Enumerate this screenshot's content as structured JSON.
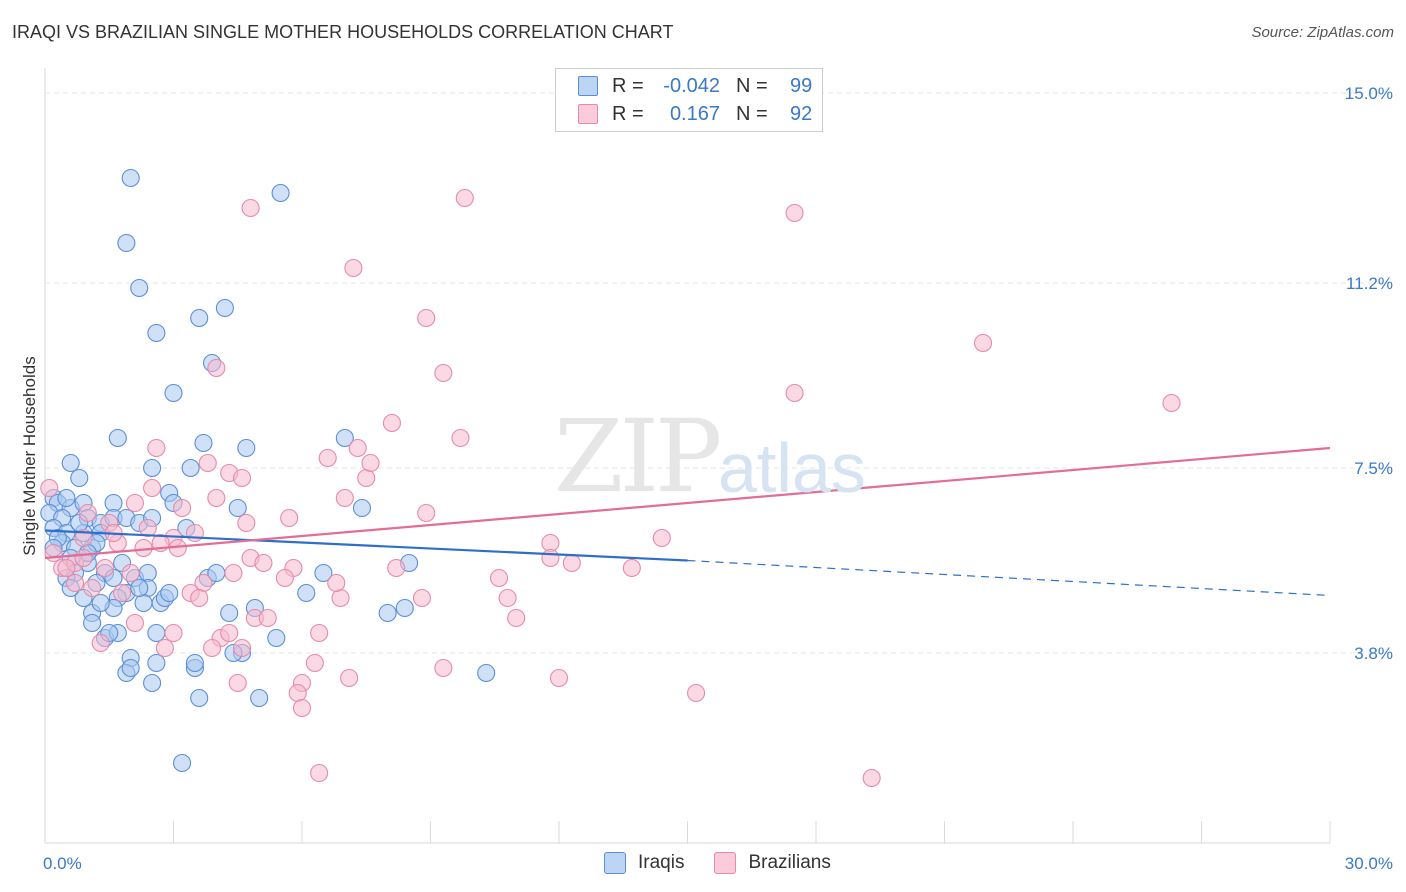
{
  "title": "IRAQI VS BRAZILIAN SINGLE MOTHER HOUSEHOLDS CORRELATION CHART",
  "source": "Source: ZipAtlas.com",
  "watermark": {
    "main": "ZIP",
    "sub": "atlas"
  },
  "legend": {
    "rows": [
      {
        "r_label": "R =",
        "r_value": "-0.042",
        "n_label": "N =",
        "n_value": "99"
      },
      {
        "r_label": "R =",
        "r_value": "0.167",
        "n_label": "N =",
        "n_value": "92"
      }
    ]
  },
  "bottom_legend": [
    "Iraqis",
    "Brazilians"
  ],
  "colors": {
    "iraqis_fill": "#a9c8f0",
    "iraqis_stroke": "#5a8fd6",
    "iraqis_line": "#2e6fcb",
    "brazilians_fill": "#f7b9ce",
    "brazilians_stroke": "#e68aa9",
    "brazilians_line": "#e26d98",
    "tick_label": "#3a78c9"
  },
  "chart_data": {
    "type": "scatter",
    "title": "IRAQI VS BRAZILIAN SINGLE MOTHER HOUSEHOLDS CORRELATION CHART",
    "xlabel": "",
    "ylabel": "Single Mother Households",
    "xlim": [
      0,
      30
    ],
    "ylim": [
      0,
      15.5
    ],
    "x_tick_labels": [
      {
        "value": 0,
        "label": "0.0%"
      },
      {
        "value": 30,
        "label": "30.0%"
      }
    ],
    "y_tick_labels": [
      {
        "value": 3.8,
        "label": "3.8%"
      },
      {
        "value": 7.5,
        "label": "7.5%"
      },
      {
        "value": 11.2,
        "label": "11.2%"
      },
      {
        "value": 15.0,
        "label": "15.0%"
      }
    ],
    "series": [
      {
        "name": "Iraqis",
        "R": -0.042,
        "N": 99,
        "trend": {
          "x": [
            0,
            15
          ],
          "y": [
            6.25,
            5.65
          ],
          "dashed_to": [
            30,
            4.95
          ]
        },
        "points": [
          [
            2.0,
            13.3
          ],
          [
            5.5,
            13.0
          ],
          [
            1.9,
            12.0
          ],
          [
            2.2,
            11.1
          ],
          [
            4.2,
            10.7
          ],
          [
            3.6,
            10.5
          ],
          [
            2.6,
            10.2
          ],
          [
            3.9,
            9.6
          ],
          [
            3.0,
            9.0
          ],
          [
            1.7,
            8.1
          ],
          [
            3.7,
            8.0
          ],
          [
            4.7,
            7.9
          ],
          [
            7.0,
            8.1
          ],
          [
            0.6,
            7.6
          ],
          [
            0.8,
            7.3
          ],
          [
            2.5,
            7.5
          ],
          [
            3.4,
            7.5
          ],
          [
            2.9,
            7.0
          ],
          [
            0.2,
            6.9
          ],
          [
            0.3,
            6.8
          ],
          [
            0.6,
            6.7
          ],
          [
            0.9,
            6.8
          ],
          [
            1.6,
            6.8
          ],
          [
            3.0,
            6.8
          ],
          [
            4.5,
            6.7
          ],
          [
            7.4,
            6.7
          ],
          [
            0.1,
            6.6
          ],
          [
            0.4,
            6.5
          ],
          [
            1.0,
            6.5
          ],
          [
            1.3,
            6.4
          ],
          [
            1.6,
            6.5
          ],
          [
            1.9,
            6.5
          ],
          [
            2.2,
            6.4
          ],
          [
            2.5,
            6.5
          ],
          [
            0.2,
            6.3
          ],
          [
            0.5,
            6.2
          ],
          [
            0.9,
            6.2
          ],
          [
            1.3,
            6.2
          ],
          [
            0.4,
            6.0
          ],
          [
            0.7,
            5.9
          ],
          [
            1.1,
            5.9
          ],
          [
            0.6,
            5.7
          ],
          [
            1.0,
            5.6
          ],
          [
            0.7,
            5.4
          ],
          [
            1.4,
            5.4
          ],
          [
            8.5,
            5.6
          ],
          [
            6.5,
            5.4
          ],
          [
            0.5,
            5.3
          ],
          [
            1.2,
            5.2
          ],
          [
            1.6,
            5.3
          ],
          [
            2.1,
            5.3
          ],
          [
            2.4,
            5.4
          ],
          [
            3.8,
            5.3
          ],
          [
            1.9,
            5.0
          ],
          [
            2.4,
            5.1
          ],
          [
            6.1,
            5.0
          ],
          [
            0.9,
            4.9
          ],
          [
            1.7,
            4.9
          ],
          [
            2.3,
            4.8
          ],
          [
            2.7,
            4.8
          ],
          [
            1.1,
            4.6
          ],
          [
            1.6,
            4.7
          ],
          [
            4.3,
            4.6
          ],
          [
            4.9,
            4.7
          ],
          [
            8.0,
            4.6
          ],
          [
            8.4,
            4.7
          ],
          [
            1.1,
            4.4
          ],
          [
            2.6,
            4.2
          ],
          [
            1.4,
            4.1
          ],
          [
            1.7,
            4.2
          ],
          [
            5.4,
            4.1
          ],
          [
            2.0,
            3.7
          ],
          [
            2.6,
            3.6
          ],
          [
            3.5,
            3.5
          ],
          [
            1.9,
            3.4
          ],
          [
            4.6,
            3.8
          ],
          [
            3.5,
            3.6
          ],
          [
            10.3,
            3.4
          ],
          [
            2.5,
            3.2
          ],
          [
            3.6,
            2.9
          ],
          [
            5.0,
            2.9
          ],
          [
            3.2,
            1.6
          ],
          [
            4.0,
            5.4
          ],
          [
            1.2,
            6.0
          ],
          [
            0.8,
            6.4
          ],
          [
            2.8,
            4.9
          ],
          [
            1.5,
            4.2
          ],
          [
            0.3,
            6.1
          ],
          [
            2.2,
            5.1
          ],
          [
            1.0,
            5.8
          ],
          [
            0.5,
            6.9
          ],
          [
            3.3,
            6.3
          ],
          [
            1.8,
            5.6
          ],
          [
            2.9,
            5.0
          ],
          [
            0.2,
            5.9
          ],
          [
            4.4,
            3.8
          ],
          [
            1.3,
            4.8
          ],
          [
            2.0,
            3.5
          ],
          [
            0.6,
            5.1
          ]
        ]
      },
      {
        "name": "Brazilians",
        "R": 0.167,
        "N": 92,
        "trend": {
          "x": [
            0,
            30
          ],
          "y": [
            5.7,
            7.9
          ]
        },
        "points": [
          [
            0.1,
            7.1
          ],
          [
            4.8,
            12.7
          ],
          [
            9.8,
            12.9
          ],
          [
            17.5,
            12.6
          ],
          [
            7.2,
            11.5
          ],
          [
            8.9,
            10.5
          ],
          [
            21.9,
            10.0
          ],
          [
            4.0,
            9.5
          ],
          [
            9.3,
            9.4
          ],
          [
            17.5,
            9.0
          ],
          [
            26.3,
            8.8
          ],
          [
            8.1,
            8.4
          ],
          [
            9.7,
            8.1
          ],
          [
            2.6,
            7.9
          ],
          [
            6.6,
            7.7
          ],
          [
            7.3,
            7.9
          ],
          [
            3.8,
            7.6
          ],
          [
            4.3,
            7.4
          ],
          [
            4.6,
            7.3
          ],
          [
            7.5,
            7.3
          ],
          [
            7.6,
            7.6
          ],
          [
            2.5,
            7.1
          ],
          [
            7.0,
            6.9
          ],
          [
            4.0,
            6.9
          ],
          [
            2.1,
            6.8
          ],
          [
            3.2,
            6.7
          ],
          [
            5.7,
            6.5
          ],
          [
            8.9,
            6.6
          ],
          [
            1.0,
            6.6
          ],
          [
            1.5,
            6.4
          ],
          [
            0.9,
            6.1
          ],
          [
            1.7,
            6.0
          ],
          [
            2.4,
            6.3
          ],
          [
            3.0,
            6.1
          ],
          [
            3.5,
            6.2
          ],
          [
            2.7,
            6.0
          ],
          [
            3.1,
            5.9
          ],
          [
            14.4,
            6.1
          ],
          [
            11.8,
            6.0
          ],
          [
            4.8,
            5.7
          ],
          [
            5.1,
            5.6
          ],
          [
            5.8,
            5.5
          ],
          [
            11.8,
            5.7
          ],
          [
            12.3,
            5.6
          ],
          [
            13.7,
            5.5
          ],
          [
            0.4,
            5.5
          ],
          [
            0.7,
            5.6
          ],
          [
            1.4,
            5.5
          ],
          [
            2.0,
            5.4
          ],
          [
            3.7,
            5.2
          ],
          [
            4.4,
            5.4
          ],
          [
            5.6,
            5.3
          ],
          [
            10.6,
            5.3
          ],
          [
            0.7,
            5.2
          ],
          [
            1.1,
            5.1
          ],
          [
            6.9,
            4.9
          ],
          [
            8.8,
            4.9
          ],
          [
            10.8,
            4.9
          ],
          [
            4.9,
            4.5
          ],
          [
            11.0,
            4.5
          ],
          [
            1.3,
            4.0
          ],
          [
            3.0,
            4.2
          ],
          [
            4.1,
            4.1
          ],
          [
            4.3,
            4.2
          ],
          [
            6.4,
            4.2
          ],
          [
            2.8,
            3.9
          ],
          [
            3.9,
            3.9
          ],
          [
            4.6,
            3.9
          ],
          [
            6.3,
            3.6
          ],
          [
            9.3,
            3.5
          ],
          [
            7.1,
            3.3
          ],
          [
            12.0,
            3.3
          ],
          [
            6.0,
            3.2
          ],
          [
            5.9,
            3.0
          ],
          [
            4.5,
            3.2
          ],
          [
            15.2,
            3.0
          ],
          [
            6.0,
            2.7
          ],
          [
            6.4,
            1.4
          ],
          [
            19.3,
            1.3
          ],
          [
            1.8,
            5.0
          ],
          [
            2.3,
            5.9
          ],
          [
            0.2,
            5.8
          ],
          [
            0.5,
            5.5
          ],
          [
            3.4,
            5.0
          ],
          [
            5.2,
            4.5
          ],
          [
            2.1,
            4.4
          ],
          [
            1.6,
            6.2
          ],
          [
            8.2,
            5.5
          ],
          [
            4.7,
            6.4
          ],
          [
            0.9,
            5.7
          ],
          [
            3.6,
            4.9
          ],
          [
            6.8,
            5.2
          ]
        ]
      }
    ]
  }
}
